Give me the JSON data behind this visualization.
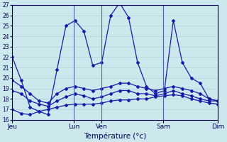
{
  "title": "Température (°c)",
  "bg_color": "#cce8ec",
  "grid_color": "#b0d4da",
  "line_color": "#1a1aaa",
  "ylim": [
    16,
    27
  ],
  "yticks": [
    16,
    17,
    18,
    19,
    20,
    21,
    22,
    23,
    24,
    25,
    26,
    27
  ],
  "x_tick_positions": [
    0,
    9,
    13,
    22,
    30
  ],
  "x_tick_labels": [
    "Jeu",
    "Lun",
    "Ven",
    "Sam",
    "Dim"
  ],
  "vlines": [
    9,
    13,
    22
  ],
  "series_max": [
    22.0,
    19.8,
    17.2,
    16.8,
    16.5,
    20.8,
    25.0,
    25.5,
    24.5,
    21.2,
    21.5,
    26.0,
    27.2,
    25.8,
    21.5,
    19.2,
    18.5,
    18.8,
    25.5,
    21.5,
    20.0,
    19.5,
    18.0,
    17.8
  ],
  "series_min": [
    17.0,
    16.6,
    16.5,
    16.8,
    17.0,
    17.2,
    17.4,
    17.5,
    17.5,
    17.5,
    17.6,
    17.8,
    17.9,
    17.9,
    18.0,
    18.0,
    18.2,
    18.3,
    18.4,
    18.3,
    18.0,
    17.8,
    17.6,
    17.5
  ],
  "series_mean1": [
    19.8,
    19.2,
    18.5,
    17.8,
    17.6,
    18.5,
    19.0,
    19.2,
    19.0,
    18.8,
    19.0,
    19.2,
    19.5,
    19.5,
    19.2,
    19.0,
    18.8,
    19.0,
    19.2,
    19.0,
    18.8,
    18.5,
    18.0,
    17.8
  ],
  "series_mean2": [
    18.8,
    18.5,
    17.8,
    17.5,
    17.3,
    17.8,
    18.2,
    18.5,
    18.3,
    18.0,
    18.2,
    18.5,
    18.8,
    18.8,
    18.5,
    18.5,
    18.3,
    18.5,
    18.8,
    18.5,
    18.3,
    18.0,
    17.8,
    17.8
  ],
  "n_points": 24,
  "xlim": [
    0,
    30
  ]
}
